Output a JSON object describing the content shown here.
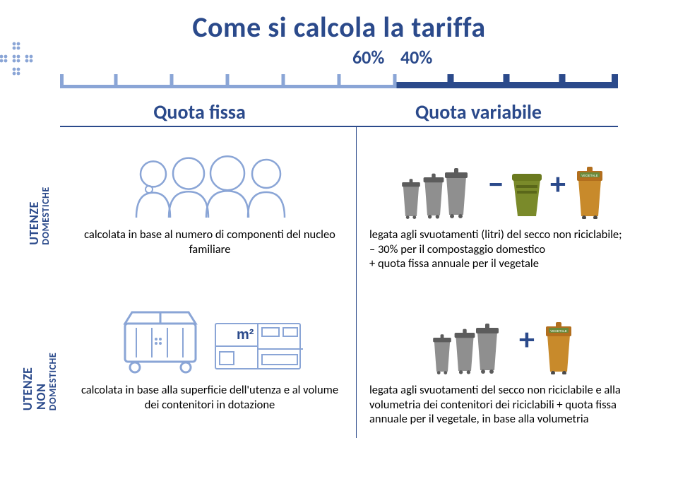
{
  "colors": {
    "primary": "#2b4a8b",
    "primaryLight": "#8aa5d6",
    "binGrey": "#8f8f8f",
    "binDark": "#5c5c5c",
    "binGreen": "#7a8a2a",
    "binOrange": "#c88a2b",
    "binOrangeTop": "#b26f1e",
    "text": "#000000",
    "bg": "#ffffff"
  },
  "title": "Come si calcola la tariffa",
  "bar": {
    "left_pct": 60,
    "right_pct": 40,
    "left_label": "60%",
    "right_label": "40%",
    "ticks": 10,
    "tick_height": 22,
    "dark_thickness": 9,
    "light_thickness": 5
  },
  "headers": {
    "left": "Quota fissa",
    "right": "Quota variabile"
  },
  "side_labels": {
    "top_line1": "UTENZE",
    "top_line2": "DOMESTICHE",
    "bottom_line1": "UTENZE NON",
    "bottom_line2": "DOMESTICHE"
  },
  "captions": {
    "top_left": "calcolata in base al numero di componenti del nucleo familiare",
    "top_right": "legata agli svuotamenti (litri) del secco non riciclabile;\n– 30% per il compostaggio domestico\n+ quota fissa annuale per il vegetale",
    "bottom_left": "calcolata in base alla superficie dell'utenza e al volume dei contenitori in dotazione",
    "bottom_right": "legata agli svuotamenti del secco non riciclabile e alla volumetria dei contenitori dei riciclabili + quota fissa annuale per il vegetale, in base alla volumetria"
  },
  "icons": {
    "m2_label": "m²"
  }
}
